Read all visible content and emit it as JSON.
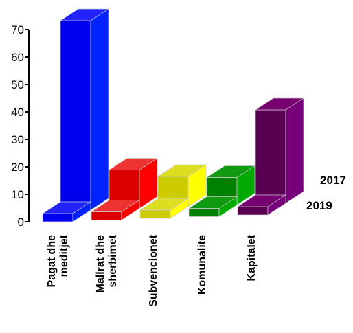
{
  "chart_data": {
    "type": "bar",
    "title": "",
    "xlabel": "",
    "ylabel": "",
    "ylim": [
      0,
      70
    ],
    "yticks": [
      "0",
      "10",
      "20",
      "30",
      "40",
      "50",
      "60",
      "70"
    ],
    "categories": [
      [
        "Pagat dhe",
        "meditjet"
      ],
      [
        "Mallrat dhe",
        "sherbimet"
      ],
      [
        "Subvencionet"
      ],
      [
        "Komunalite"
      ],
      [
        "Kapitalet"
      ]
    ],
    "series": [
      {
        "name": "2019",
        "values": [
          3,
          3,
          3,
          3,
          3
        ]
      },
      {
        "name": "2017",
        "values": [
          69,
          14,
          11,
          10,
          34
        ]
      }
    ],
    "grid": false,
    "legend": "right",
    "colors": {
      "bars": [
        "#0000ee",
        "#dd0000",
        "#cccc00",
        "#008000",
        "#5a0052"
      ],
      "top": [
        "#2222ff",
        "#ee3333",
        "#dddd22",
        "#119911",
        "#770070"
      ],
      "side": [
        "#0022ff",
        "#ff0000",
        "#ffff00",
        "#00aa00",
        "#77007a"
      ],
      "edge": "#cccccc",
      "axis": "#000000"
    }
  }
}
